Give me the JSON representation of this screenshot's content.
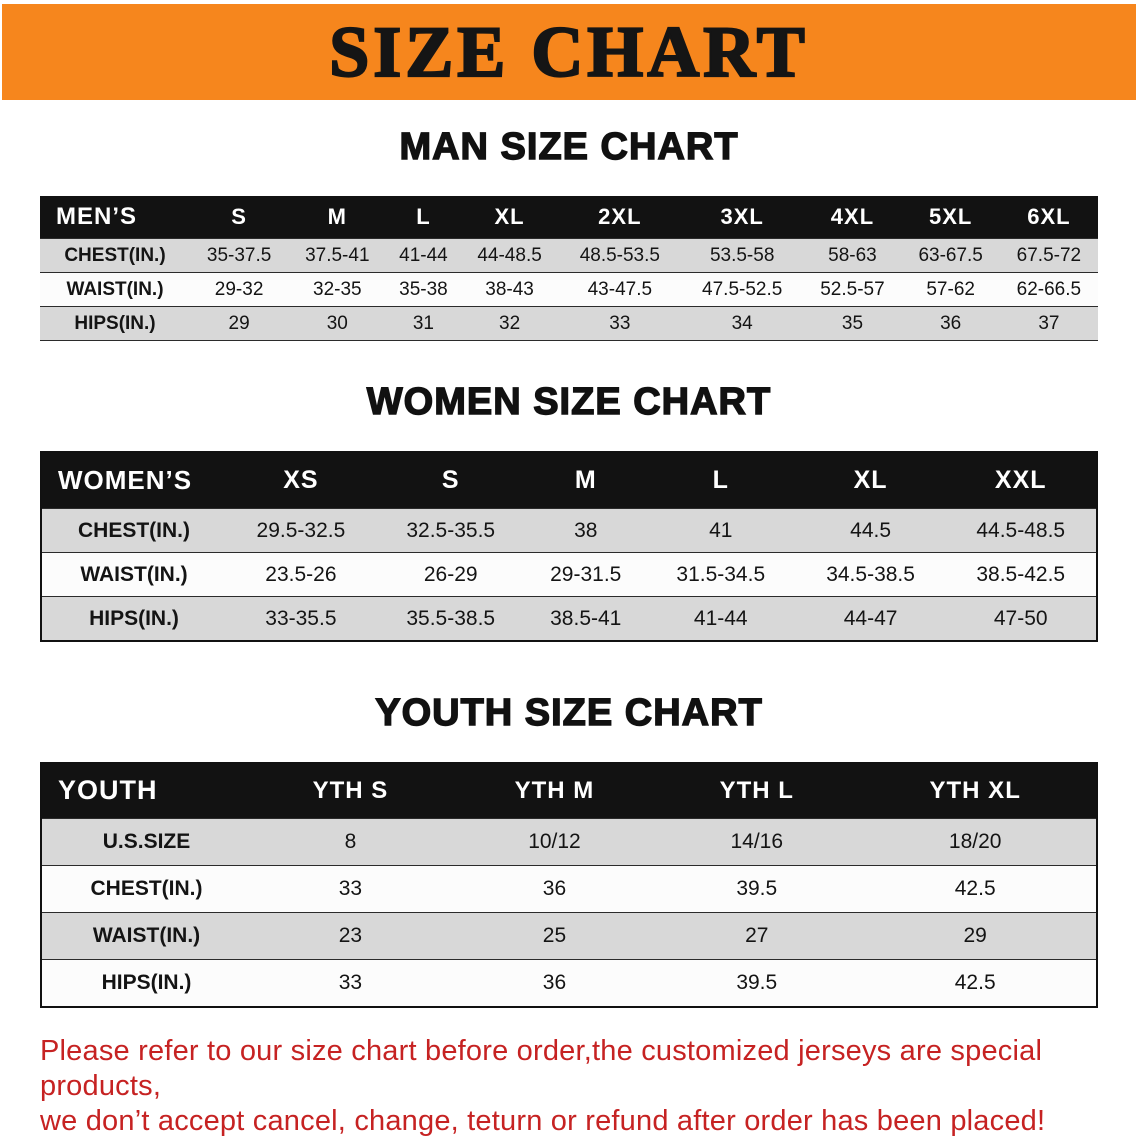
{
  "banner": {
    "title": "SIZE CHART",
    "bg_color": "#F6861D",
    "text_color": "#151515"
  },
  "sections": [
    {
      "heading": "MAN SIZE CHART",
      "table": {
        "header": [
          "MEN’S",
          "S",
          "M",
          "L",
          "XL",
          "2XL",
          "3XL",
          "4XL",
          "5XL",
          "6XL"
        ],
        "rows": [
          {
            "label": "CHEST(IN.)",
            "values": [
              "35-37.5",
              "37.5-41",
              "41-44",
              "44-48.5",
              "48.5-53.5",
              "53.5-58",
              "58-63",
              "63-67.5",
              "67.5-72"
            ]
          },
          {
            "label": "WAIST(IN.)",
            "values": [
              "29-32",
              "32-35",
              "35-38",
              "38-43",
              "43-47.5",
              "47.5-52.5",
              "52.5-57",
              "57-62",
              "62-66.5"
            ]
          },
          {
            "label": "HIPS(IN.)",
            "values": [
              "29",
              "30",
              "31",
              "32",
              "33",
              "34",
              "35",
              "36",
              "37"
            ]
          }
        ]
      }
    },
    {
      "heading": "WOMEN SIZE CHART",
      "table": {
        "header": [
          "WOMEN’S",
          "XS",
          "S",
          "M",
          "L",
          "XL",
          "XXL"
        ],
        "rows": [
          {
            "label": "CHEST(IN.)",
            "values": [
              "29.5-32.5",
              "32.5-35.5",
              "38",
              "41",
              "44.5",
              "44.5-48.5"
            ]
          },
          {
            "label": "WAIST(IN.)",
            "values": [
              "23.5-26",
              "26-29",
              "29-31.5",
              "31.5-34.5",
              "34.5-38.5",
              "38.5-42.5"
            ]
          },
          {
            "label": "HIPS(IN.)",
            "values": [
              "33-35.5",
              "35.5-38.5",
              "38.5-41",
              "41-44",
              "44-47",
              "47-50"
            ]
          }
        ]
      }
    },
    {
      "heading": "YOUTH SIZE CHART",
      "table": {
        "header": [
          "YOUTH",
          "YTH S",
          "YTH M",
          "YTH L",
          "YTH XL"
        ],
        "rows": [
          {
            "label": "U.S.SIZE",
            "values": [
              "8",
              "10/12",
              "14/16",
              "18/20"
            ]
          },
          {
            "label": "CHEST(IN.)",
            "values": [
              "33",
              "36",
              "39.5",
              "42.5"
            ]
          },
          {
            "label": "WAIST(IN.)",
            "values": [
              "23",
              "25",
              "27",
              "29"
            ]
          },
          {
            "label": "HIPS(IN.)",
            "values": [
              "33",
              "36",
              "39.5",
              "42.5"
            ]
          }
        ]
      }
    }
  ],
  "table_colors": {
    "header_bg": "#121212",
    "header_text": "#FFFFFF",
    "stripe_row": "#D8D8D8",
    "plain_row": "#FCFCFC"
  },
  "footer_note": {
    "line1": "Please refer to our size chart before order,the customized jerseys are special products,",
    "line2": "we don’t accept cancel, change, teturn or refund after order has been placed!",
    "color": "#C62222"
  }
}
